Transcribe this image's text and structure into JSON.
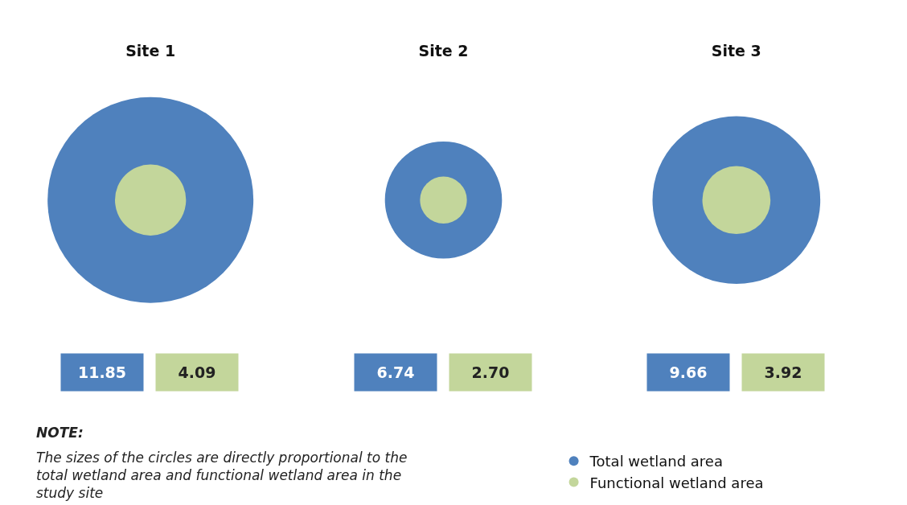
{
  "chart_data": {
    "type": "other",
    "categories": [
      "Site 1",
      "Site 2",
      "Site 3"
    ],
    "series": [
      {
        "name": "Total wetland area",
        "color": "#4f81bd",
        "values": [
          11.85,
          6.74,
          9.66
        ],
        "value_labels": [
          "11.85",
          "6.74",
          "9.66"
        ]
      },
      {
        "name": "Functional wetland area",
        "color": "#c3d69b",
        "values": [
          4.09,
          2.7,
          3.92
        ],
        "value_labels": [
          "4.09",
          "2.70",
          "3.92"
        ]
      }
    ],
    "legend": "bottom right",
    "annotations": [
      "NOTE:",
      "The sizes of the circles are directly proportional to the total wetland area and functional wetland area in the study site"
    ]
  }
}
